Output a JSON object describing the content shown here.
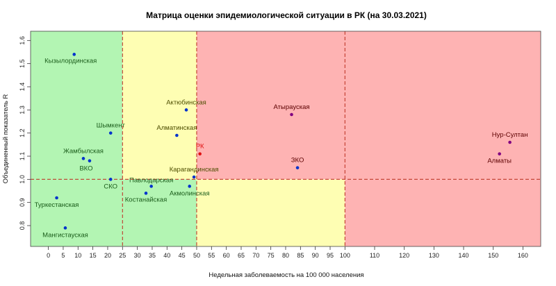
{
  "chart_data": {
    "type": "scatter",
    "title": "Матрица оценки эпидемиологической ситуации в РК (на 30.03.2021)",
    "xlabel": "Недельная заболеваемость на 100 000 населения",
    "ylabel": "Объединенный показатель R",
    "xlim": [
      -6,
      166
    ],
    "ylim": [
      0.71,
      1.64
    ],
    "xticks": [
      0,
      5,
      10,
      15,
      20,
      25,
      30,
      35,
      40,
      45,
      50,
      55,
      60,
      65,
      70,
      75,
      80,
      85,
      90,
      95,
      100,
      110,
      120,
      130,
      140,
      150,
      160
    ],
    "yticks": [
      0.8,
      0.9,
      1.0,
      1.1,
      1.2,
      1.3,
      1.4,
      1.5,
      1.6
    ],
    "threshold_lines": {
      "x": [
        25,
        50,
        100
      ],
      "y": 1.0
    },
    "zones": [
      {
        "x0": -6,
        "x1": 25,
        "y0": 0.71,
        "y1": 1.64,
        "color": "#b3f5b3"
      },
      {
        "x0": 25,
        "x1": 50,
        "y0": 1.0,
        "y1": 1.64,
        "color": "#fefeb3"
      },
      {
        "x0": 25,
        "x1": 50,
        "y0": 0.71,
        "y1": 1.0,
        "color": "#b3f5b3"
      },
      {
        "x0": 50,
        "x1": 100,
        "y0": 0.71,
        "y1": 1.0,
        "color": "#fefeb3"
      },
      {
        "x0": 50,
        "x1": 166,
        "y0": 1.0,
        "y1": 1.64,
        "color": "#feb3b3"
      },
      {
        "x0": 100,
        "x1": 166,
        "y0": 0.71,
        "y1": 1.0,
        "color": "#feb3b3"
      }
    ],
    "points": [
      {
        "label": "Кызылординская",
        "x": 8.7,
        "y": 1.54,
        "label_dx": -5,
        "label_dy": 12,
        "color": "#0033cc",
        "label_color": "#1a5c1a"
      },
      {
        "label": "Шымкент",
        "x": 21,
        "y": 1.2,
        "label_dx": 0,
        "label_dy": -8,
        "color": "#0033cc",
        "label_color": "#1a5c1a"
      },
      {
        "label": "Жамбылская",
        "x": 11.8,
        "y": 1.09,
        "label_dx": 0,
        "label_dy": -8,
        "color": "#0033cc",
        "label_color": "#1a5c1a"
      },
      {
        "label": "ВКО",
        "x": 13.9,
        "y": 1.08,
        "label_dx": -5,
        "label_dy": 14,
        "color": "#0033cc",
        "label_color": "#1a5c1a"
      },
      {
        "label": "СКО",
        "x": 21,
        "y": 1.0,
        "label_dx": 0,
        "label_dy": 13,
        "color": "#0033cc",
        "label_color": "#1a5c1a"
      },
      {
        "label": "Туркестанская",
        "x": 2.8,
        "y": 0.92,
        "label_dx": 0,
        "label_dy": 13,
        "color": "#0033cc",
        "label_color": "#1a5c1a"
      },
      {
        "label": "Мангистауская",
        "x": 5.7,
        "y": 0.79,
        "label_dx": 0,
        "label_dy": 13,
        "color": "#0033cc",
        "label_color": "#1a5c1a"
      },
      {
        "label": "Павлодарская",
        "x": 34.7,
        "y": 0.97,
        "label_dx": 0,
        "label_dy": -6,
        "color": "#0033cc",
        "label_color": "#1a5c1a"
      },
      {
        "label": "Костанайская",
        "x": 32.9,
        "y": 0.94,
        "label_dx": 0,
        "label_dy": 12,
        "color": "#0033cc",
        "label_color": "#1a5c1a"
      },
      {
        "label": "Акмолинская",
        "x": 47.6,
        "y": 0.97,
        "label_dx": 0,
        "label_dy": 13,
        "color": "#0033cc",
        "label_color": "#1a5c1a"
      },
      {
        "label": "Карагандинская",
        "x": 49.1,
        "y": 1.01,
        "label_dx": 0,
        "label_dy": -8,
        "color": "#0033cc",
        "label_color": "#4d4d00"
      },
      {
        "label": "Актюбинская",
        "x": 46.5,
        "y": 1.3,
        "label_dx": 0,
        "label_dy": -8,
        "color": "#0033cc",
        "label_color": "#4d4d00"
      },
      {
        "label": "Алматинская",
        "x": 43.3,
        "y": 1.19,
        "label_dx": 0,
        "label_dy": -8,
        "color": "#0033cc",
        "label_color": "#4d4d00"
      },
      {
        "label": "РК",
        "x": 51.1,
        "y": 1.11,
        "label_dx": 0,
        "label_dy": -8,
        "color": "#e01010",
        "label_color": "#e01010"
      },
      {
        "label": "Атырауская",
        "x": 82,
        "y": 1.28,
        "label_dx": 0,
        "label_dy": -8,
        "color": "#800080",
        "label_color": "#5c0000"
      },
      {
        "label": "ЗКО",
        "x": 84,
        "y": 1.05,
        "label_dx": 0,
        "label_dy": -8,
        "color": "#0033cc",
        "label_color": "#5c0000"
      },
      {
        "label": "Нур-Султан",
        "x": 155.6,
        "y": 1.16,
        "label_dx": 0,
        "label_dy": -8,
        "color": "#800080",
        "label_color": "#5c0000"
      },
      {
        "label": "Алматы",
        "x": 152.1,
        "y": 1.11,
        "label_dx": 0,
        "label_dy": 13,
        "color": "#800080",
        "label_color": "#5c0000"
      }
    ]
  }
}
